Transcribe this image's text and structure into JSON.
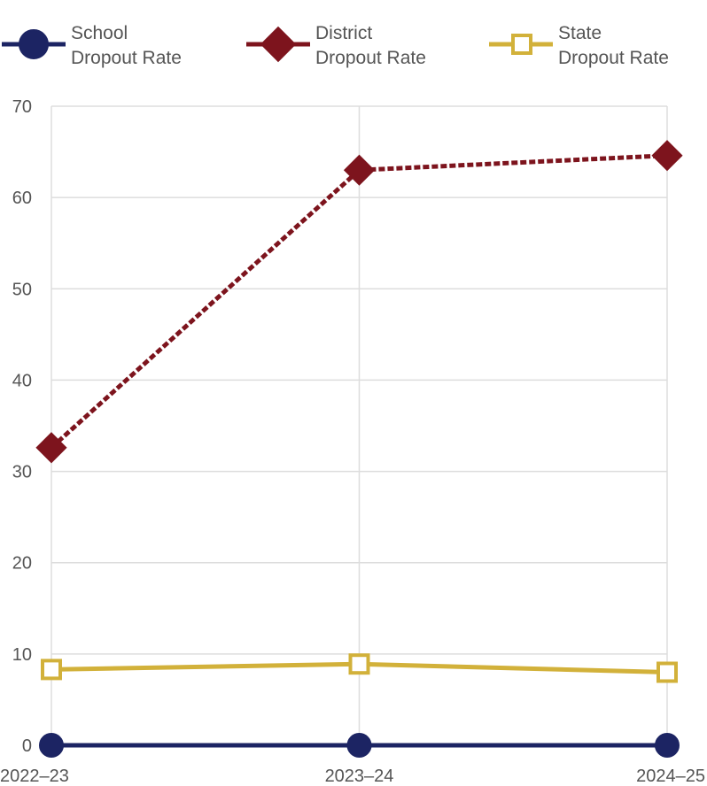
{
  "chart_data": {
    "type": "line",
    "title": "",
    "xlabel": "",
    "ylabel": "",
    "x": [
      "2022–23",
      "2023–24",
      "2024–25"
    ],
    "ylim": [
      0,
      70
    ],
    "yticks": [
      0,
      10,
      20,
      30,
      40,
      50,
      60,
      70
    ],
    "grid": true,
    "legend_position": "top",
    "series": [
      {
        "name": "School Dropout Rate",
        "name_lines": [
          "School",
          "Dropout Rate"
        ],
        "values": [
          0,
          0,
          0
        ],
        "color": "#1c2463",
        "marker": "circle",
        "line_style": "solid"
      },
      {
        "name": "District Dropout Rate",
        "name_lines": [
          "District",
          "Dropout Rate"
        ],
        "values": [
          32.6,
          63.0,
          64.6
        ],
        "color": "#7d141d",
        "marker": "diamond",
        "line_style": "dashed"
      },
      {
        "name": "State Dropout Rate",
        "name_lines": [
          "State",
          "Dropout Rate"
        ],
        "values": [
          8.3,
          8.9,
          8.0
        ],
        "color": "#d2b13a",
        "marker": "square-open",
        "line_style": "solid"
      }
    ]
  }
}
